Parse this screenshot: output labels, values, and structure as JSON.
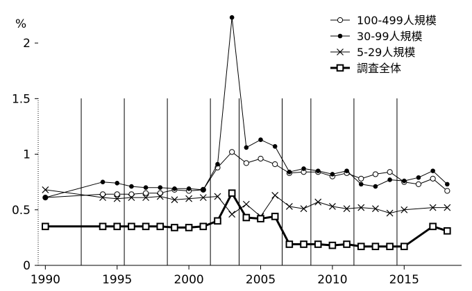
{
  "chart_data": {
    "type": "line",
    "title": "",
    "xlabel": "",
    "ylabel": "",
    "unit_label": "%",
    "xlim": [
      1989.5,
      2019
    ],
    "ylim": [
      0,
      2.25
    ],
    "x_ticks": [
      "1990",
      "1995",
      "2000",
      "2005",
      "2010",
      "2015"
    ],
    "y_ticks": [
      "0",
      "0.5",
      "1",
      "1.5",
      "2"
    ],
    "x_tick_values": [
      1990,
      1995,
      2000,
      2005,
      2010,
      2015
    ],
    "y_tick_values": [
      0,
      0.5,
      1,
      1.5,
      2
    ],
    "vertical_gridlines_x": [
      1992.5,
      1995.5,
      1998.5,
      2001.5,
      2003.5,
      2006.5,
      2008.5,
      2011.5,
      2014.5
    ],
    "legend_position": "top-right",
    "series": [
      {
        "name": "100-499人規模",
        "marker": "open-circle",
        "line_width": "thin",
        "color": "#000000",
        "points": [
          [
            1990,
            0.61
          ],
          [
            1994,
            0.64
          ],
          [
            1995,
            0.64
          ],
          [
            1996,
            0.64
          ],
          [
            1997,
            0.65
          ],
          [
            1998,
            0.65
          ],
          [
            1999,
            0.68
          ],
          [
            2000,
            0.67
          ],
          [
            2001,
            0.68
          ],
          [
            2002,
            0.88
          ],
          [
            2003,
            1.02
          ],
          [
            2004,
            0.92
          ],
          [
            2005,
            0.96
          ],
          [
            2006,
            0.91
          ],
          [
            2007,
            0.83
          ],
          [
            2008,
            0.84
          ],
          [
            2009,
            0.84
          ],
          [
            2010,
            0.8
          ],
          [
            2011,
            0.83
          ],
          [
            2012,
            0.78
          ],
          [
            2013,
            0.82
          ],
          [
            2014,
            0.84
          ],
          [
            2015,
            0.75
          ],
          [
            2016,
            0.73
          ],
          [
            2017,
            0.78
          ],
          [
            2018,
            0.67
          ]
        ]
      },
      {
        "name": "30-99人規模",
        "marker": "filled-circle",
        "line_width": "thin",
        "color": "#000000",
        "points": [
          [
            1990,
            0.61
          ],
          [
            1994,
            0.75
          ],
          [
            1995,
            0.74
          ],
          [
            1996,
            0.71
          ],
          [
            1997,
            0.7
          ],
          [
            1998,
            0.7
          ],
          [
            1999,
            0.69
          ],
          [
            2000,
            0.69
          ],
          [
            2001,
            0.68
          ],
          [
            2002,
            0.91
          ],
          [
            2003,
            2.23
          ],
          [
            2004,
            1.06
          ],
          [
            2005,
            1.13
          ],
          [
            2006,
            1.07
          ],
          [
            2007,
            0.84
          ],
          [
            2008,
            0.87
          ],
          [
            2009,
            0.85
          ],
          [
            2010,
            0.82
          ],
          [
            2011,
            0.85
          ],
          [
            2012,
            0.73
          ],
          [
            2013,
            0.71
          ],
          [
            2014,
            0.77
          ],
          [
            2015,
            0.76
          ],
          [
            2016,
            0.79
          ],
          [
            2017,
            0.85
          ],
          [
            2018,
            0.73
          ]
        ]
      },
      {
        "name": "5-29人規模",
        "marker": "x",
        "line_width": "thin",
        "color": "#000000",
        "points": [
          [
            1990,
            0.68
          ],
          [
            1994,
            0.61
          ],
          [
            1995,
            0.6
          ],
          [
            1996,
            0.61
          ],
          [
            1997,
            0.61
          ],
          [
            1998,
            0.62
          ],
          [
            1999,
            0.59
          ],
          [
            2000,
            0.6
          ],
          [
            2001,
            0.61
          ],
          [
            2002,
            0.62
          ],
          [
            2003,
            0.46
          ],
          [
            2004,
            0.55
          ],
          [
            2005,
            0.44
          ],
          [
            2006,
            0.63
          ],
          [
            2007,
            0.53
          ],
          [
            2008,
            0.51
          ],
          [
            2009,
            0.57
          ],
          [
            2010,
            0.53
          ],
          [
            2011,
            0.51
          ],
          [
            2012,
            0.52
          ],
          [
            2013,
            0.51
          ],
          [
            2014,
            0.47
          ],
          [
            2015,
            0.5
          ],
          [
            2017,
            0.52
          ],
          [
            2018,
            0.52
          ]
        ]
      },
      {
        "name": "調査全体",
        "marker": "open-square",
        "line_width": "thick",
        "color": "#000000",
        "points": [
          [
            1990,
            0.35
          ],
          [
            1994,
            0.35
          ],
          [
            1995,
            0.35
          ],
          [
            1996,
            0.35
          ],
          [
            1997,
            0.35
          ],
          [
            1998,
            0.35
          ],
          [
            1999,
            0.34
          ],
          [
            2000,
            0.34
          ],
          [
            2001,
            0.35
          ],
          [
            2002,
            0.4
          ],
          [
            2003,
            0.65
          ],
          [
            2004,
            0.43
          ],
          [
            2005,
            0.42
          ],
          [
            2006,
            0.44
          ],
          [
            2007,
            0.19
          ],
          [
            2008,
            0.19
          ],
          [
            2009,
            0.19
          ],
          [
            2010,
            0.18
          ],
          [
            2011,
            0.19
          ],
          [
            2012,
            0.17
          ],
          [
            2013,
            0.17
          ],
          [
            2014,
            0.17
          ],
          [
            2015,
            0.17
          ],
          [
            2017,
            0.35
          ],
          [
            2018,
            0.31
          ]
        ]
      }
    ]
  }
}
